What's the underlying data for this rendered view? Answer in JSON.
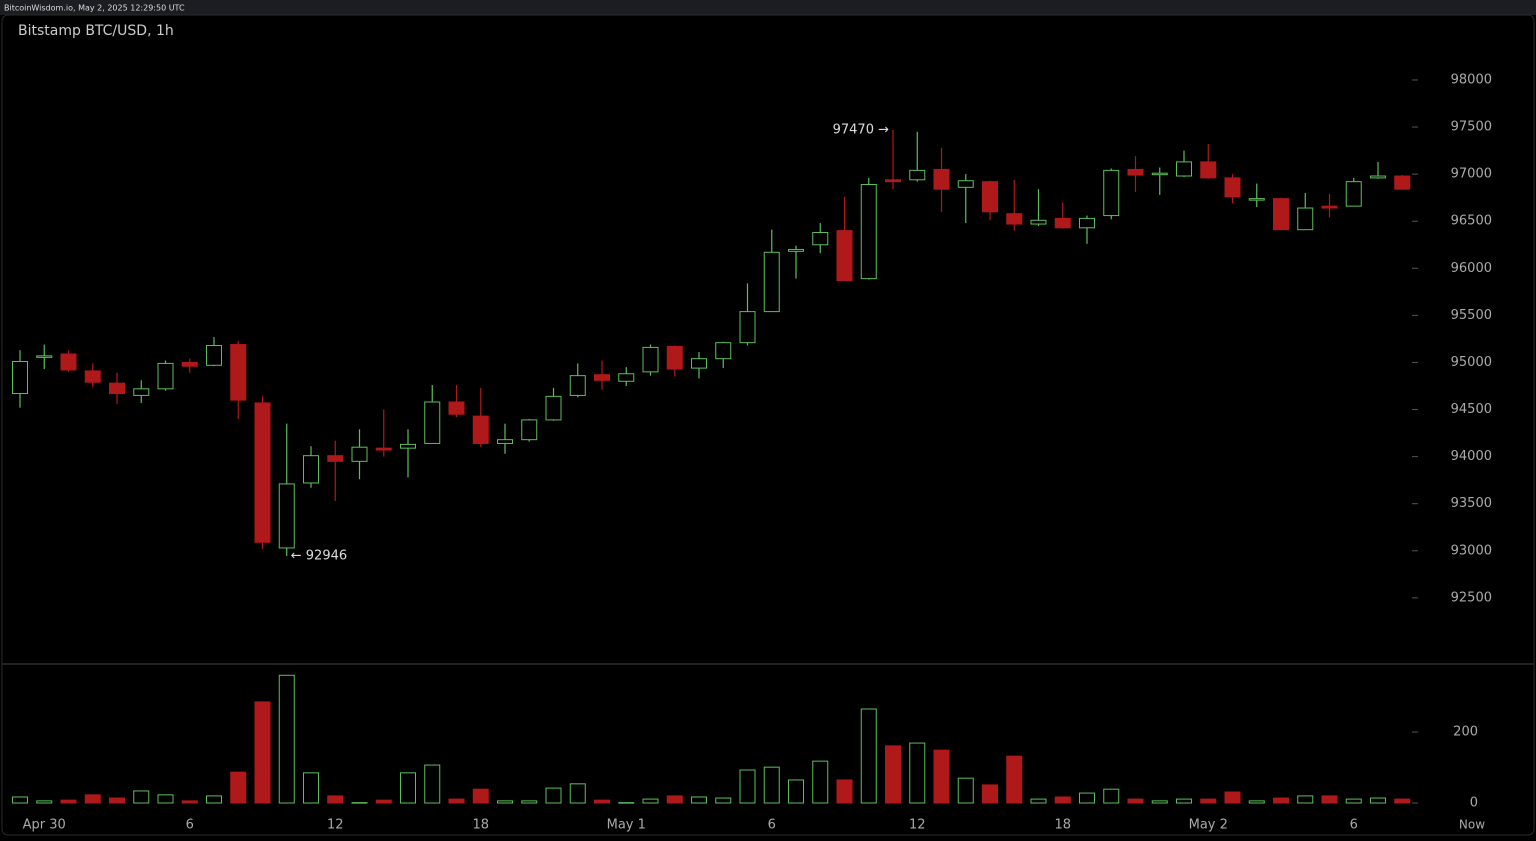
{
  "header": "BitcoinWisdom.io, May 2, 2025 12:29:50 UTC",
  "chart_data": {
    "type": "candlestick",
    "title": "Bitstamp BTC/USD, 1h",
    "categories": [
      null,
      "Apr 30",
      null,
      null,
      null,
      null,
      null,
      "6",
      null,
      null,
      null,
      null,
      null,
      "12",
      null,
      null,
      null,
      null,
      null,
      "18",
      null,
      null,
      null,
      null,
      null,
      "May 1",
      null,
      null,
      null,
      null,
      null,
      "6",
      null,
      null,
      null,
      null,
      null,
      "12",
      null,
      null,
      null,
      null,
      null,
      "18",
      null,
      null,
      null,
      null,
      null,
      "May 2",
      null,
      null,
      null,
      null,
      null,
      "6",
      null,
      null
    ],
    "now_label": "Now",
    "open": [
      94670,
      95060,
      95090,
      94910,
      94780,
      94650,
      94720,
      95000,
      94970,
      95190,
      94570,
      93030,
      93720,
      94010,
      93950,
      94090,
      94090,
      94140,
      94580,
      94430,
      94140,
      94180,
      94390,
      94650,
      94870,
      94800,
      94900,
      95170,
      94940,
      95040,
      95210,
      95540,
      96180,
      96250,
      96400,
      95890,
      96940,
      96940,
      97050,
      96860,
      96920,
      96580,
      96470,
      96530,
      96430,
      96560,
      97050,
      97000,
      96980,
      97130,
      96960,
      96730,
      96740,
      96410,
      96660,
      96660,
      96960,
      96980
    ],
    "high": [
      95130,
      95190,
      95130,
      94990,
      94890,
      94810,
      95020,
      95040,
      95270,
      95230,
      94640,
      94350,
      94110,
      94170,
      94290,
      94500,
      94290,
      94760,
      94760,
      94730,
      94350,
      94400,
      94730,
      94990,
      95020,
      94950,
      95190,
      95180,
      95110,
      95220,
      95840,
      96410,
      96240,
      96480,
      96760,
      96960,
      97470,
      97450,
      97280,
      97000,
      96930,
      96940,
      96840,
      96700,
      96560,
      97060,
      97190,
      97070,
      97250,
      97320,
      97000,
      96900,
      96750,
      96800,
      96790,
      96960,
      97130,
      96990
    ],
    "low": [
      94520,
      94930,
      94900,
      94740,
      94560,
      94570,
      94700,
      94890,
      94960,
      94400,
      93020,
      92946,
      93670,
      93530,
      93760,
      94000,
      93780,
      94140,
      94420,
      94100,
      94030,
      94160,
      94380,
      94630,
      94710,
      94750,
      94860,
      94850,
      94830,
      94940,
      95180,
      95540,
      95890,
      96160,
      95870,
      95880,
      96840,
      96920,
      96600,
      96480,
      96510,
      96400,
      96450,
      96420,
      96260,
      96520,
      96810,
      96780,
      96970,
      96950,
      96690,
      96650,
      96410,
      96410,
      96540,
      96660,
      96950,
      96840
    ],
    "close": [
      95010,
      95070,
      94920,
      94790,
      94670,
      94720,
      94990,
      94960,
      95180,
      94600,
      93090,
      93710,
      94010,
      93950,
      94100,
      94070,
      94130,
      94580,
      94450,
      94140,
      94180,
      94390,
      94640,
      94860,
      94810,
      94880,
      95160,
      94930,
      95040,
      95210,
      95540,
      96170,
      96200,
      96380,
      95870,
      96890,
      96920,
      97040,
      96840,
      96930,
      96600,
      96470,
      96510,
      96430,
      96530,
      97040,
      96990,
      97010,
      97130,
      96960,
      96760,
      96740,
      96410,
      96640,
      96640,
      96920,
      96980,
      96840
    ],
    "volume": [
      17,
      6,
      8,
      23,
      14,
      34,
      23,
      6,
      20,
      87,
      285,
      360,
      85,
      20,
      1,
      8,
      85,
      107,
      11,
      39,
      6,
      6,
      42,
      54,
      8,
      1,
      11,
      20,
      17,
      14,
      93,
      101,
      65,
      118,
      65,
      265,
      161,
      169,
      149,
      70,
      51,
      132,
      11,
      17,
      28,
      39,
      11,
      6,
      11,
      11,
      31,
      6,
      14,
      20,
      20,
      11,
      14,
      11
    ],
    "annotations": [
      "97470 →",
      "← 92946"
    ],
    "ylim": [
      91787,
      98690
    ],
    "yticks": [
      92500,
      93000,
      93500,
      94000,
      94500,
      95000,
      95500,
      96000,
      96500,
      97000,
      97500,
      98000
    ],
    "volume_ylim": [
      0,
      389
    ],
    "volume_yticks": [
      0,
      200
    ],
    "up_color": "#5cbf5c",
    "down_color": "#b0191a"
  }
}
